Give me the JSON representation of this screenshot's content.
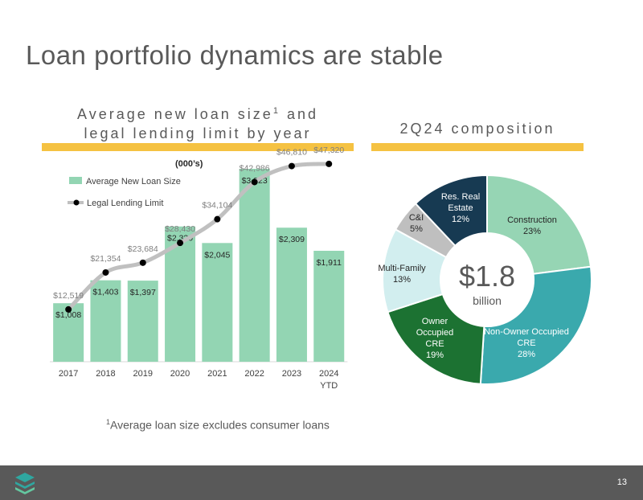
{
  "slide": {
    "title": "Loan portfolio dynamics are stable",
    "left_heading_line1": "Average new loan size",
    "left_heading_sup": "1",
    "left_heading_line1_tail": " and",
    "left_heading_line2": "legal lending limit by year",
    "right_heading": "2Q24 composition",
    "units_label": "(000’s)",
    "footnote_sup": "1",
    "footnote_text": "Average loan size excludes consumer loans",
    "page_number": "13"
  },
  "colors": {
    "bar": "#93d5b3",
    "line": "#c0c0c0",
    "accent": "#f5c242"
  },
  "chart_data": [
    {
      "type": "bar+line",
      "categories": [
        "2017",
        "2018",
        "2019",
        "2020",
        "2021",
        "2022",
        "2023",
        "2024"
      ],
      "category_sublabels": [
        "",
        "",
        "",
        "",
        "",
        "",
        "",
        "YTD"
      ],
      "series": [
        {
          "name": "Average New Loan Size",
          "type": "bar",
          "values": [
            1008,
            1403,
            1397,
            2330,
            2045,
            3323,
            2309,
            1911
          ],
          "labels": [
            "$1,008",
            "$1,403",
            "$1,397",
            "$2,330",
            "$2,045",
            "$3,323",
            "$2,309",
            "$1,911"
          ]
        },
        {
          "name": "Legal Lending Limit",
          "type": "line",
          "values": [
            12519,
            21354,
            23684,
            28430,
            34104,
            42986,
            46810,
            47320
          ],
          "labels": [
            "$12,519",
            "$21,354",
            "$23,684",
            "$28,430",
            "$34,104",
            "$42,986",
            "$46,810",
            "$47,320"
          ]
        }
      ],
      "legend": "top-left",
      "ylim_bar": [
        0,
        3600
      ],
      "ylim_line": [
        0,
        50000
      ]
    },
    {
      "type": "pie",
      "variant": "donut",
      "center_value": "$1.8",
      "center_label": "billion",
      "slices": [
        {
          "name": "Construction",
          "value": 23,
          "label": "23%",
          "color": "#96d5b4"
        },
        {
          "name": "Non-Owner Occupied CRE",
          "lines": [
            "Non-Owner Occupied",
            "CRE"
          ],
          "value": 28,
          "label": "28%",
          "color": "#3aa9ad"
        },
        {
          "name": "Owner Occupied CRE",
          "lines": [
            "Owner",
            "Occupied",
            "CRE"
          ],
          "value": 19,
          "label": "19%",
          "color": "#1c7232"
        },
        {
          "name": "Multi-Family",
          "lines": [
            "Multi-Family"
          ],
          "value": 13,
          "label": "13%",
          "color": "#d2eeef"
        },
        {
          "name": "C&I",
          "lines": [
            "C&I"
          ],
          "value": 5,
          "label": "5%",
          "color": "#bfbfbf"
        },
        {
          "name": "Res. Real Estate",
          "lines": [
            "Res. Real",
            "Estate"
          ],
          "value": 12,
          "label": "12%",
          "color": "#173a52"
        }
      ]
    }
  ]
}
